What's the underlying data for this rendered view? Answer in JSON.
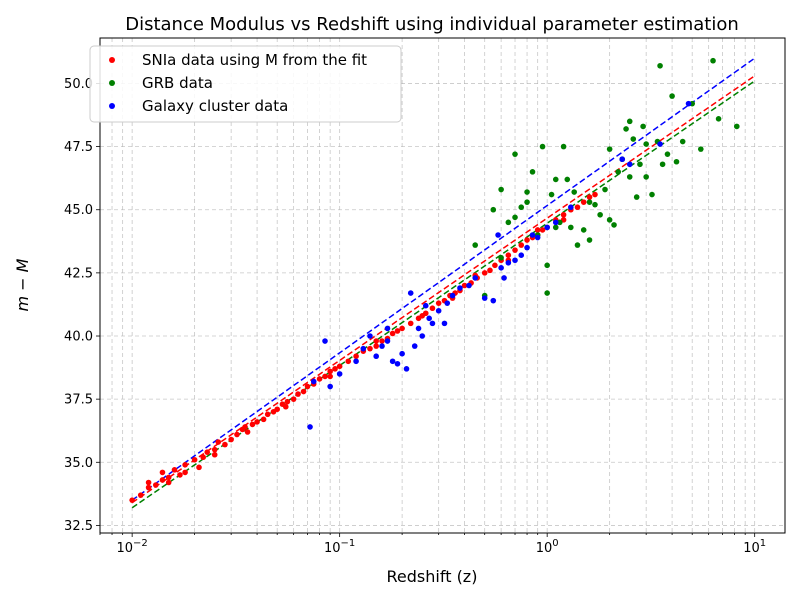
{
  "chart_data": {
    "type": "scatter",
    "title": "Distance Modulus vs Redshift using individual parameter estimation",
    "xlabel": "Redshift (z)",
    "ylabel": "m − M",
    "xscale": "log",
    "xlim": [
      0.007,
      14
    ],
    "ylim": [
      32.2,
      51.8
    ],
    "grid": true,
    "legend_position": "top-left",
    "x_ticks": [
      {
        "value": 0.01,
        "base": "10",
        "exp": "−2"
      },
      {
        "value": 0.1,
        "base": "10",
        "exp": "−1"
      },
      {
        "value": 1,
        "base": "10",
        "exp": "0"
      },
      {
        "value": 10,
        "base": "10",
        "exp": "1"
      }
    ],
    "y_ticks": [
      32.5,
      35.0,
      37.5,
      40.0,
      42.5,
      45.0,
      47.5,
      50.0
    ],
    "y_tick_labels": [
      "32.5",
      "35.0",
      "37.5",
      "40.0",
      "42.5",
      "45.0",
      "47.5",
      "50.0"
    ],
    "series": [
      {
        "name": "SNIa data using M from the fit",
        "color": "#ff0000",
        "kind": "points",
        "points": [
          [
            0.01,
            33.5
          ],
          [
            0.011,
            33.7
          ],
          [
            0.012,
            34.0
          ],
          [
            0.013,
            34.1
          ],
          [
            0.014,
            34.3
          ],
          [
            0.014,
            34.6
          ],
          [
            0.015,
            34.4
          ],
          [
            0.015,
            34.2
          ],
          [
            0.016,
            34.7
          ],
          [
            0.017,
            34.5
          ],
          [
            0.018,
            34.9
          ],
          [
            0.02,
            35.1
          ],
          [
            0.021,
            34.8
          ],
          [
            0.022,
            35.2
          ],
          [
            0.023,
            35.4
          ],
          [
            0.025,
            35.5
          ],
          [
            0.026,
            35.8
          ],
          [
            0.028,
            35.7
          ],
          [
            0.03,
            35.9
          ],
          [
            0.032,
            36.1
          ],
          [
            0.034,
            36.3
          ],
          [
            0.036,
            36.2
          ],
          [
            0.038,
            36.5
          ],
          [
            0.04,
            36.6
          ],
          [
            0.043,
            36.7
          ],
          [
            0.045,
            36.9
          ],
          [
            0.048,
            37.0
          ],
          [
            0.05,
            37.1
          ],
          [
            0.053,
            37.3
          ],
          [
            0.056,
            37.4
          ],
          [
            0.06,
            37.5
          ],
          [
            0.063,
            37.7
          ],
          [
            0.067,
            37.8
          ],
          [
            0.07,
            38.0
          ],
          [
            0.075,
            38.1
          ],
          [
            0.08,
            38.3
          ],
          [
            0.085,
            38.4
          ],
          [
            0.09,
            38.6
          ],
          [
            0.095,
            38.7
          ],
          [
            0.1,
            38.8
          ],
          [
            0.11,
            39.0
          ],
          [
            0.12,
            39.2
          ],
          [
            0.13,
            39.4
          ],
          [
            0.14,
            39.5
          ],
          [
            0.15,
            39.6
          ],
          [
            0.16,
            39.8
          ],
          [
            0.17,
            39.9
          ],
          [
            0.18,
            40.1
          ],
          [
            0.19,
            40.2
          ],
          [
            0.2,
            40.3
          ],
          [
            0.22,
            40.5
          ],
          [
            0.24,
            40.7
          ],
          [
            0.26,
            40.9
          ],
          [
            0.28,
            41.1
          ],
          [
            0.3,
            41.3
          ],
          [
            0.32,
            41.4
          ],
          [
            0.34,
            41.6
          ],
          [
            0.36,
            41.7
          ],
          [
            0.38,
            41.8
          ],
          [
            0.4,
            42.0
          ],
          [
            0.43,
            42.1
          ],
          [
            0.46,
            42.3
          ],
          [
            0.5,
            42.5
          ],
          [
            0.53,
            42.6
          ],
          [
            0.56,
            42.8
          ],
          [
            0.6,
            43.0
          ],
          [
            0.65,
            43.2
          ],
          [
            0.7,
            43.4
          ],
          [
            0.75,
            43.6
          ],
          [
            0.8,
            43.8
          ],
          [
            0.85,
            43.9
          ],
          [
            0.9,
            44.0
          ],
          [
            0.95,
            44.2
          ],
          [
            1.0,
            44.3
          ],
          [
            1.1,
            44.6
          ],
          [
            1.2,
            44.8
          ],
          [
            1.3,
            45.0
          ],
          [
            1.4,
            45.1
          ],
          [
            1.5,
            45.3
          ],
          [
            1.6,
            45.5
          ],
          [
            1.7,
            45.6
          ],
          [
            0.012,
            34.2
          ],
          [
            0.018,
            34.6
          ],
          [
            0.025,
            35.3
          ],
          [
            0.035,
            36.4
          ],
          [
            0.055,
            37.2
          ],
          [
            0.09,
            38.4
          ],
          [
            0.15,
            39.8
          ],
          [
            0.25,
            40.8
          ],
          [
            0.35,
            41.5
          ],
          [
            0.45,
            42.4
          ],
          [
            0.65,
            43.0
          ],
          [
            0.9,
            44.2
          ],
          [
            1.2,
            44.6
          ]
        ]
      },
      {
        "name": "GRB data",
        "color": "#008000",
        "kind": "points",
        "points": [
          [
            0.45,
            43.6
          ],
          [
            0.5,
            41.6
          ],
          [
            0.55,
            45.0
          ],
          [
            0.6,
            45.8
          ],
          [
            0.65,
            44.5
          ],
          [
            0.7,
            44.7
          ],
          [
            0.75,
            45.1
          ],
          [
            0.8,
            45.3
          ],
          [
            0.85,
            46.5
          ],
          [
            0.9,
            44.0
          ],
          [
            0.95,
            47.5
          ],
          [
            1.0,
            41.7
          ],
          [
            1.0,
            42.8
          ],
          [
            1.05,
            45.6
          ],
          [
            1.1,
            46.2
          ],
          [
            1.15,
            44.5
          ],
          [
            1.2,
            47.5
          ],
          [
            1.25,
            46.2
          ],
          [
            1.3,
            44.3
          ],
          [
            1.35,
            45.7
          ],
          [
            1.4,
            43.6
          ],
          [
            1.5,
            44.2
          ],
          [
            1.6,
            43.8
          ],
          [
            1.7,
            45.2
          ],
          [
            1.8,
            44.8
          ],
          [
            1.9,
            45.8
          ],
          [
            2.0,
            47.4
          ],
          [
            2.1,
            44.4
          ],
          [
            2.2,
            46.5
          ],
          [
            2.3,
            47.0
          ],
          [
            2.4,
            48.2
          ],
          [
            2.5,
            46.3
          ],
          [
            2.6,
            47.8
          ],
          [
            2.7,
            45.5
          ],
          [
            2.8,
            46.8
          ],
          [
            2.9,
            48.3
          ],
          [
            3.0,
            46.3
          ],
          [
            3.2,
            45.6
          ],
          [
            3.4,
            47.7
          ],
          [
            3.5,
            50.7
          ],
          [
            3.6,
            46.8
          ],
          [
            3.8,
            47.2
          ],
          [
            4.0,
            49.5
          ],
          [
            4.2,
            46.9
          ],
          [
            4.5,
            47.7
          ],
          [
            5.0,
            49.2
          ],
          [
            5.5,
            47.4
          ],
          [
            6.3,
            50.9
          ],
          [
            6.7,
            48.6
          ],
          [
            8.2,
            48.3
          ],
          [
            0.7,
            47.2
          ],
          [
            0.8,
            45.7
          ],
          [
            1.6,
            45.3
          ],
          [
            2.0,
            44.6
          ],
          [
            2.5,
            48.5
          ],
          [
            3.0,
            47.6
          ],
          [
            0.6,
            43.1
          ],
          [
            1.1,
            44.3
          ]
        ]
      },
      {
        "name": "Galaxy cluster data",
        "color": "#0000ff",
        "kind": "points",
        "points": [
          [
            0.072,
            36.4
          ],
          [
            0.075,
            38.2
          ],
          [
            0.085,
            39.8
          ],
          [
            0.09,
            38.0
          ],
          [
            0.1,
            38.5
          ],
          [
            0.12,
            39.0
          ],
          [
            0.14,
            40.0
          ],
          [
            0.15,
            39.2
          ],
          [
            0.16,
            39.6
          ],
          [
            0.17,
            40.3
          ],
          [
            0.18,
            39.0
          ],
          [
            0.19,
            38.9
          ],
          [
            0.2,
            39.3
          ],
          [
            0.21,
            38.7
          ],
          [
            0.22,
            41.7
          ],
          [
            0.23,
            39.6
          ],
          [
            0.24,
            40.3
          ],
          [
            0.25,
            40.0
          ],
          [
            0.26,
            41.2
          ],
          [
            0.28,
            40.5
          ],
          [
            0.3,
            41.0
          ],
          [
            0.32,
            40.5
          ],
          [
            0.35,
            41.6
          ],
          [
            0.38,
            41.9
          ],
          [
            0.42,
            42.0
          ],
          [
            0.45,
            42.3
          ],
          [
            0.5,
            41.5
          ],
          [
            0.55,
            41.4
          ],
          [
            0.58,
            44.0
          ],
          [
            0.6,
            42.7
          ],
          [
            0.62,
            42.3
          ],
          [
            0.65,
            42.9
          ],
          [
            0.7,
            43.0
          ],
          [
            0.75,
            43.2
          ],
          [
            0.8,
            43.5
          ],
          [
            0.85,
            44.0
          ],
          [
            0.9,
            43.9
          ],
          [
            1.0,
            44.3
          ],
          [
            1.1,
            44.5
          ],
          [
            1.3,
            45.1
          ],
          [
            2.3,
            47.0
          ],
          [
            2.5,
            46.8
          ],
          [
            3.5,
            47.6
          ],
          [
            4.8,
            49.2
          ],
          [
            0.13,
            39.5
          ],
          [
            0.17,
            39.8
          ],
          [
            0.27,
            40.7
          ],
          [
            0.33,
            41.3
          ]
        ]
      },
      {
        "name": "",
        "color": "#ff0000",
        "kind": "fit-line",
        "points": [
          [
            0.01,
            33.4
          ],
          [
            10,
            50.3
          ]
        ]
      },
      {
        "name": "",
        "color": "#008000",
        "kind": "fit-line",
        "points": [
          [
            0.01,
            33.2
          ],
          [
            10,
            50.1
          ]
        ]
      },
      {
        "name": "",
        "color": "#0000ff",
        "kind": "fit-line",
        "points": [
          [
            0.01,
            33.5
          ],
          [
            10,
            51.0
          ]
        ]
      }
    ]
  }
}
